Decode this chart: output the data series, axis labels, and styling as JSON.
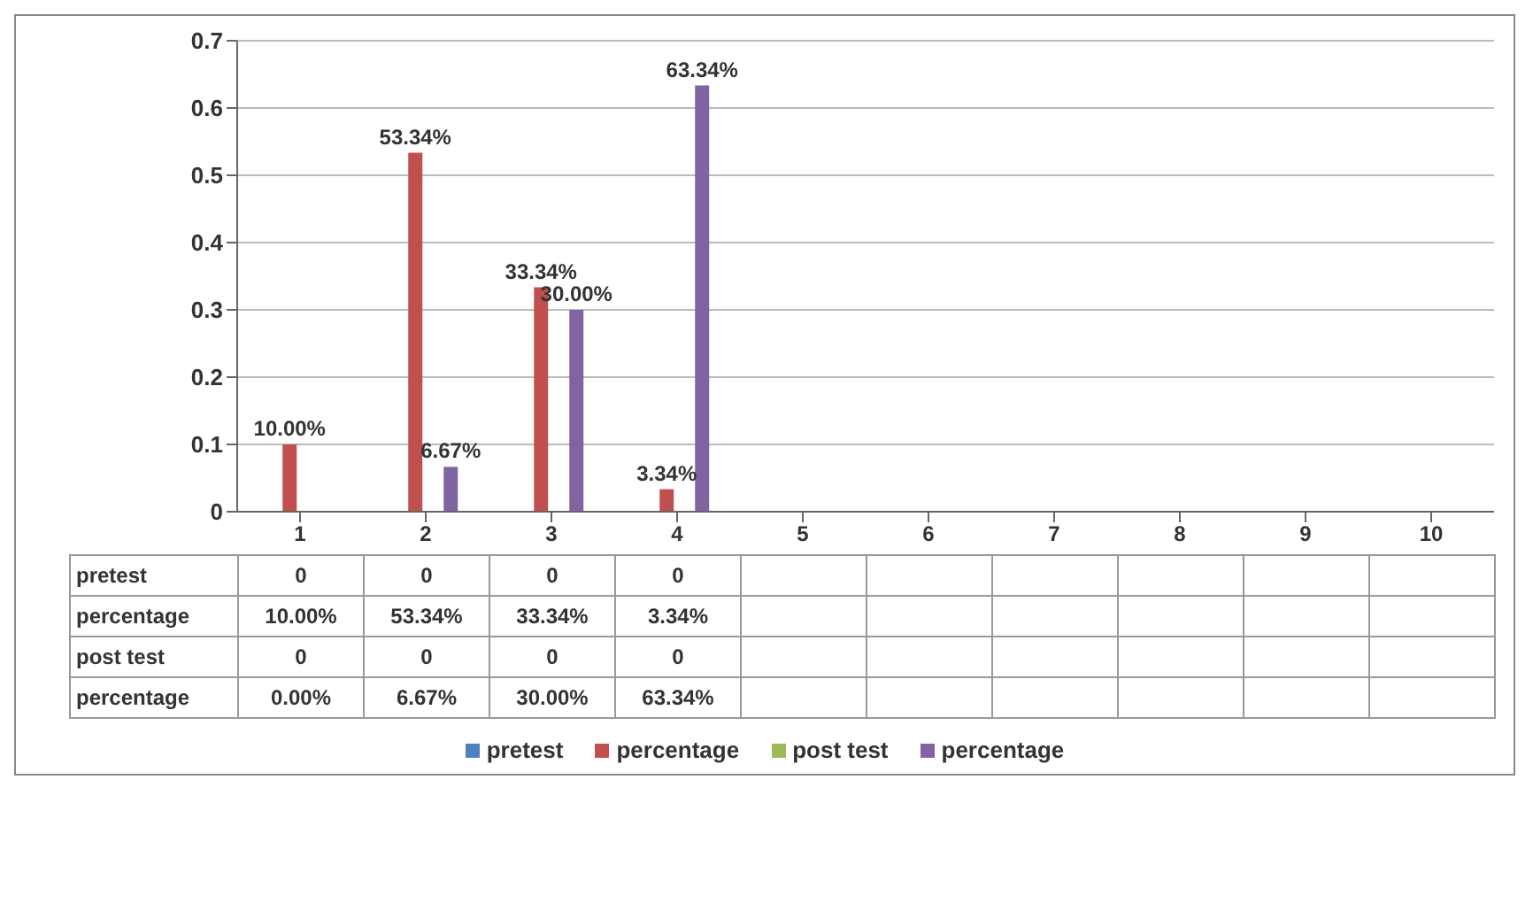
{
  "chart_data": {
    "type": "bar",
    "categories": [
      "1",
      "2",
      "3",
      "4",
      "5",
      "6",
      "7",
      "8",
      "9",
      "10"
    ],
    "series": [
      {
        "name": "pretest",
        "color": "#4f81bd",
        "values": [
          0,
          0,
          0,
          0,
          null,
          null,
          null,
          null,
          null,
          null
        ],
        "value_labels": [
          "0",
          "0",
          "0",
          "0",
          null,
          null,
          null,
          null,
          null,
          null
        ]
      },
      {
        "name": "percentage",
        "color": "#c0504d",
        "values": [
          0.1,
          0.5334,
          0.3334,
          0.0334,
          null,
          null,
          null,
          null,
          null,
          null
        ],
        "value_labels": [
          "10.00%",
          "53.34%",
          "33.34%",
          "3.34%",
          null,
          null,
          null,
          null,
          null,
          null
        ]
      },
      {
        "name": "post test",
        "color": "#9bbb59",
        "values": [
          0,
          0,
          0,
          0,
          null,
          null,
          null,
          null,
          null,
          null
        ],
        "value_labels": [
          "0",
          "0",
          "0",
          "0",
          null,
          null,
          null,
          null,
          null,
          null
        ]
      },
      {
        "name": "percentage",
        "color": "#8064a2",
        "values": [
          0,
          0.0667,
          0.3,
          0.6334,
          null,
          null,
          null,
          null,
          null,
          null
        ],
        "value_labels": [
          "0.00%",
          "6.67%",
          "30.00%",
          "63.34%",
          null,
          null,
          null,
          null,
          null,
          null
        ]
      }
    ],
    "ylim": [
      0,
      0.7
    ],
    "yticks": [
      0,
      0.1,
      0.2,
      0.3,
      0.4,
      0.5,
      0.6,
      0.7
    ],
    "grid": "y",
    "legend": "bottom"
  }
}
